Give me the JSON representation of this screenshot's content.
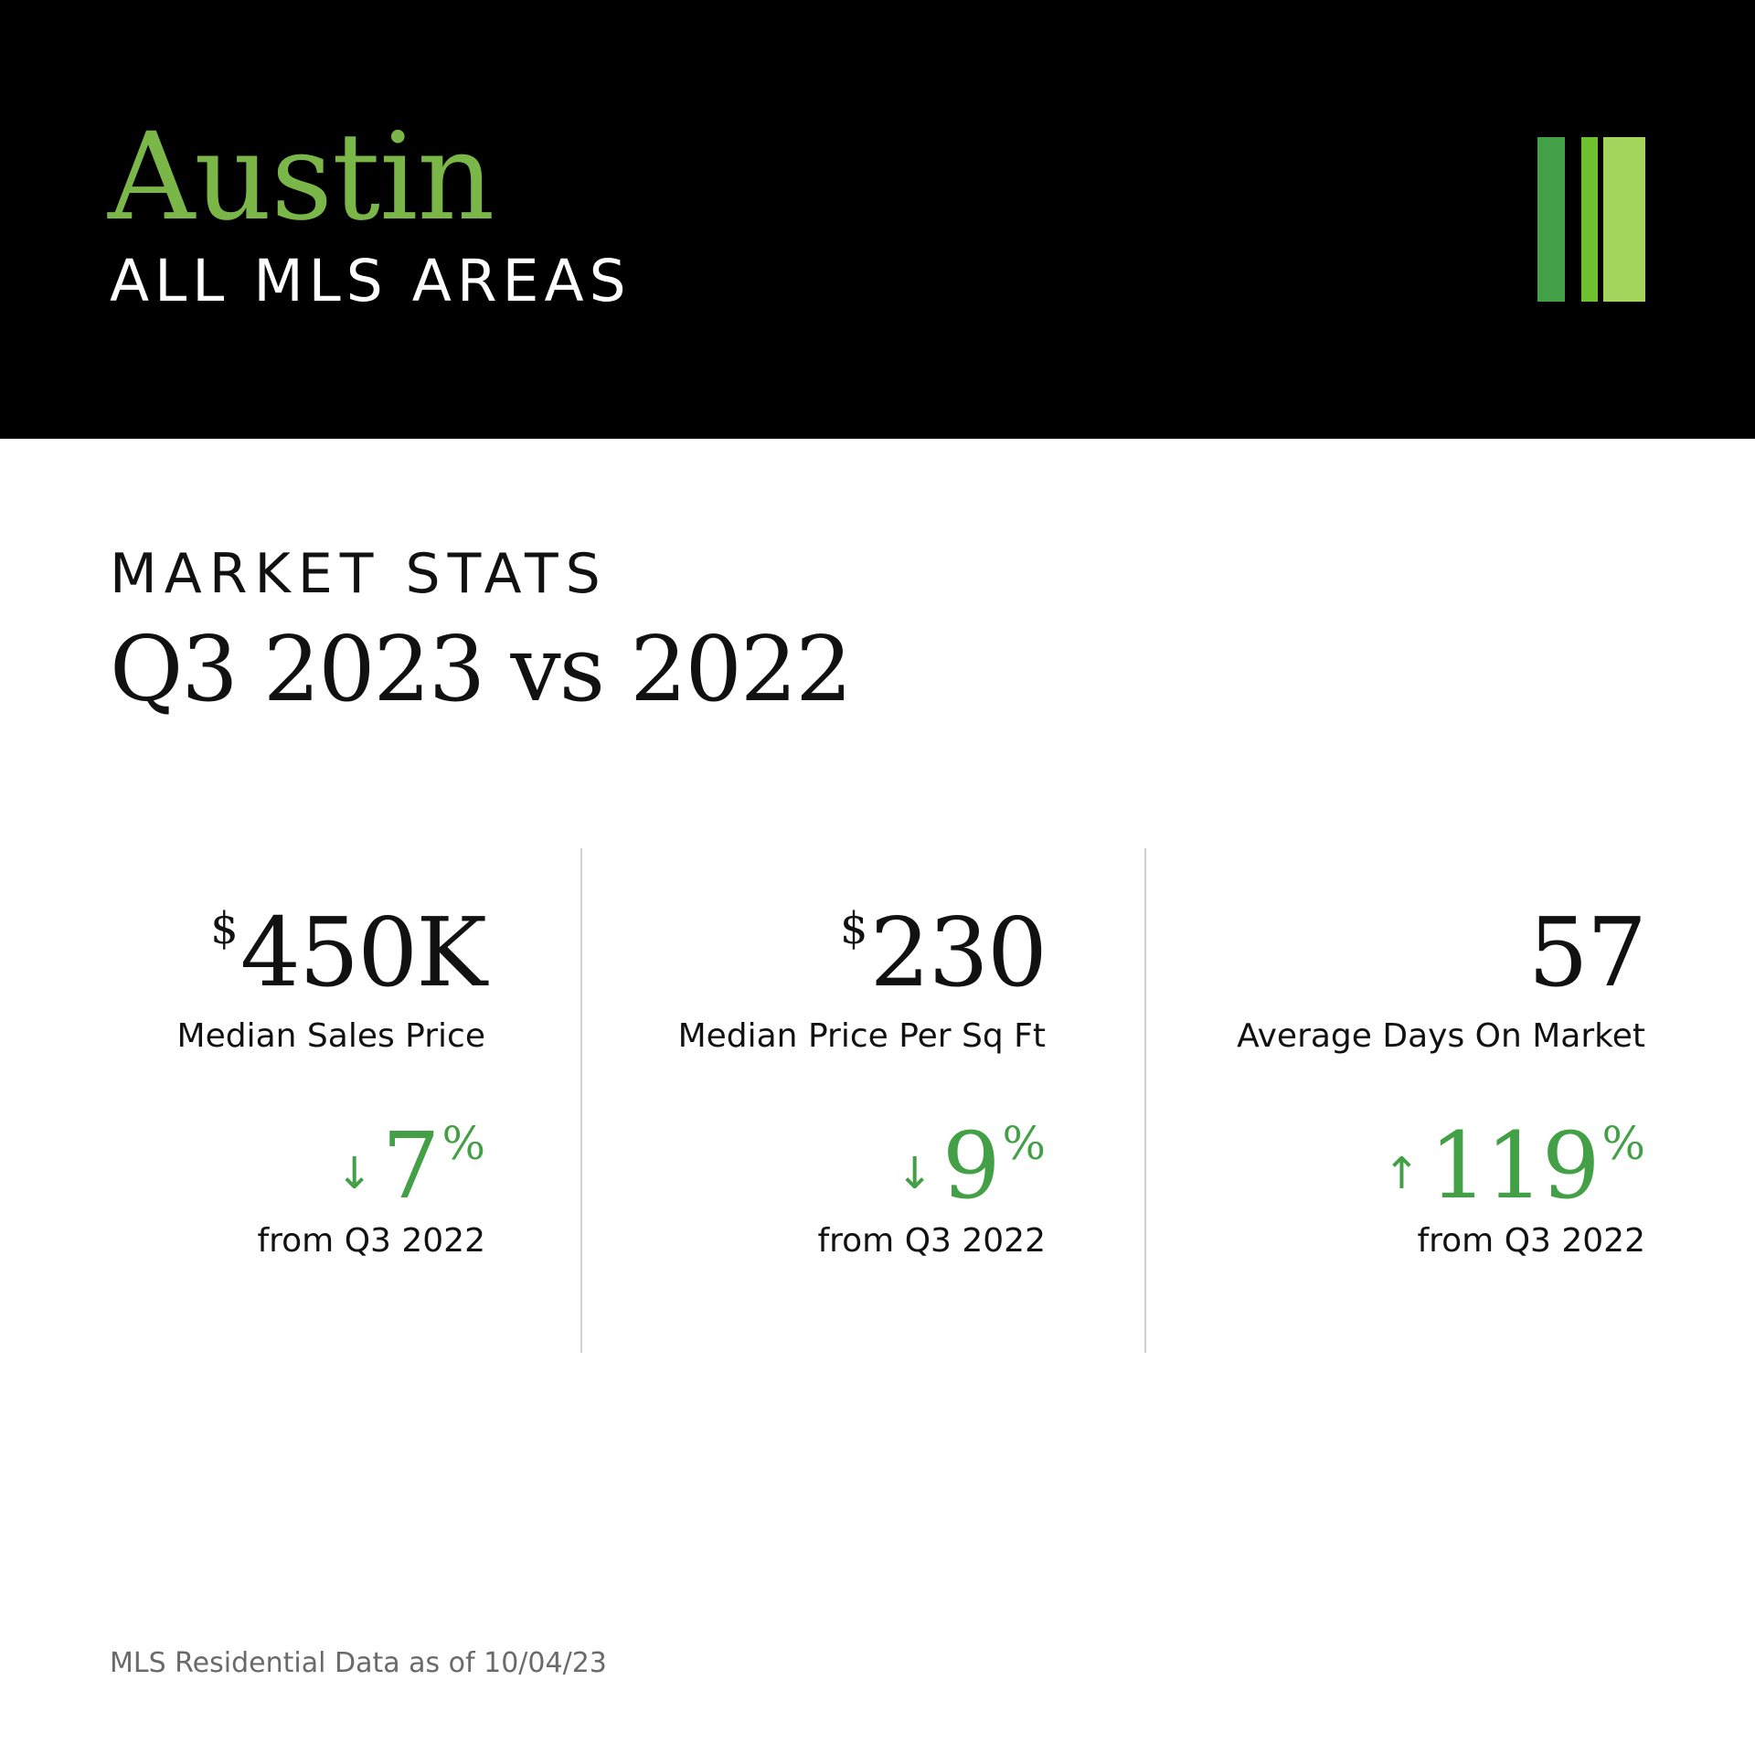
{
  "header": {
    "city": "Austin",
    "area": "ALL MLS AREAS",
    "logo_icon": "triple-bar-logo",
    "logo_colors": [
      "#43a047",
      "#6fbf2f",
      "#a4d65e"
    ]
  },
  "section": {
    "label": "MARKET STATS",
    "title": "Q3 2023 vs 2022"
  },
  "stats": [
    {
      "currency": "$",
      "value": "450K",
      "label": "Median Sales Price",
      "direction_icon": "arrow-down-icon",
      "arrow": "↓",
      "change": "7",
      "percent": "%",
      "comparison": "from Q3 2022"
    },
    {
      "currency": "$",
      "value": "230",
      "label": "Median Price Per Sq Ft",
      "direction_icon": "arrow-down-icon",
      "arrow": "↓",
      "change": "9",
      "percent": "%",
      "comparison": "from Q3 2022"
    },
    {
      "currency": "",
      "value": "57",
      "label": "Average Days On Market",
      "direction_icon": "arrow-up-icon",
      "arrow": "↑",
      "change": "119",
      "percent": "%",
      "comparison": "from Q3 2022"
    }
  ],
  "footer": {
    "note": "MLS Residential Data as of 10/04/23"
  },
  "colors": {
    "header_background": "#000000",
    "accent_green": "#7ab648",
    "change_green": "#43a047"
  }
}
